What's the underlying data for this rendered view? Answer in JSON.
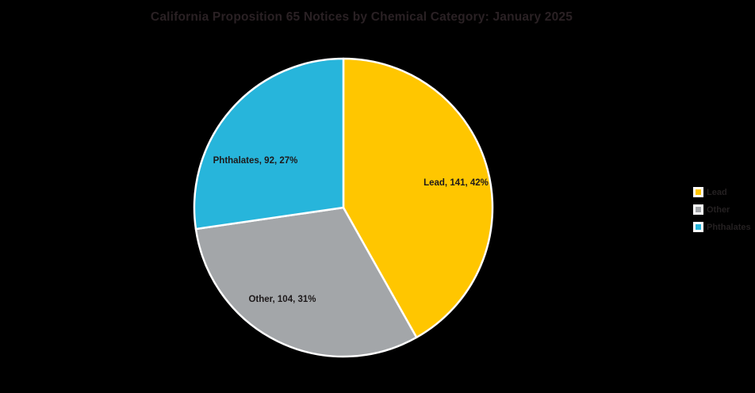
{
  "background_color": "#000000",
  "chart_data": {
    "type": "pie",
    "title": "California Proposition 65 Notices by Chemical Category: January 2025",
    "slices": [
      {
        "name": "Lead",
        "value": 141,
        "percent": 42,
        "color": "#FFC600",
        "label": "Lead, 141, 42%"
      },
      {
        "name": "Other",
        "value": 104,
        "percent": 31,
        "color": "#A3A6A9",
        "label": "Other, 104, 31%"
      },
      {
        "name": "Phthalates",
        "value": 92,
        "percent": 27,
        "color": "#27B5DB",
        "label": "Phthalates, 92, 27%"
      }
    ],
    "start_angle_deg": 0,
    "direction": "clockwise",
    "slice_border_color": "#FFFFFF",
    "legend": {
      "position": "right",
      "entries": [
        "Lead",
        "Other",
        "Phthalates"
      ]
    },
    "text_colors": {
      "title": "#2A2124",
      "slice_label": "#1D191A",
      "legend": "#242021"
    }
  }
}
